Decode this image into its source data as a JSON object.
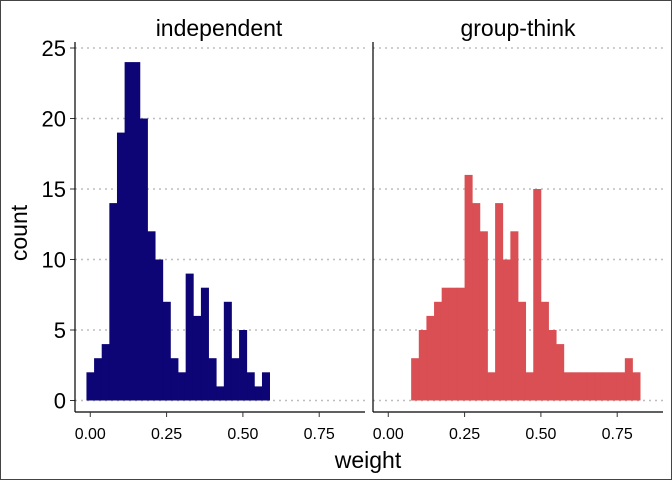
{
  "chart_data": {
    "type": "bar",
    "subtype": "faceted-histogram",
    "xlabel": "weight",
    "ylabel": "count",
    "ylim": [
      0,
      25
    ],
    "yticks": [
      0,
      5,
      10,
      15,
      20,
      25
    ],
    "xlim": [
      -0.05,
      0.9
    ],
    "xticks": [
      0.0,
      0.25,
      0.5,
      0.75
    ],
    "xtick_labels": [
      "0.00",
      "0.25",
      "0.50",
      "0.75"
    ],
    "grid": "horizontal dotted major lines",
    "bin_width": 0.025,
    "facets": [
      {
        "name": "independent",
        "color": "#0d0575",
        "bin_start": -0.0125,
        "counts": [
          2,
          3,
          4,
          14,
          19,
          24,
          24,
          20,
          12,
          10,
          7,
          3,
          2,
          9,
          6,
          8,
          3,
          1,
          7,
          3,
          5,
          2,
          1,
          2
        ]
      },
      {
        "name": "group-think",
        "color": "#d94f53",
        "bin_start": 0.075,
        "counts": [
          3,
          5,
          6,
          7,
          8,
          8,
          8,
          16,
          14,
          12,
          2,
          14,
          10,
          12,
          7,
          2,
          15,
          7,
          5,
          4,
          2,
          2,
          2,
          2,
          2,
          2,
          2,
          2,
          3,
          2
        ]
      }
    ]
  }
}
